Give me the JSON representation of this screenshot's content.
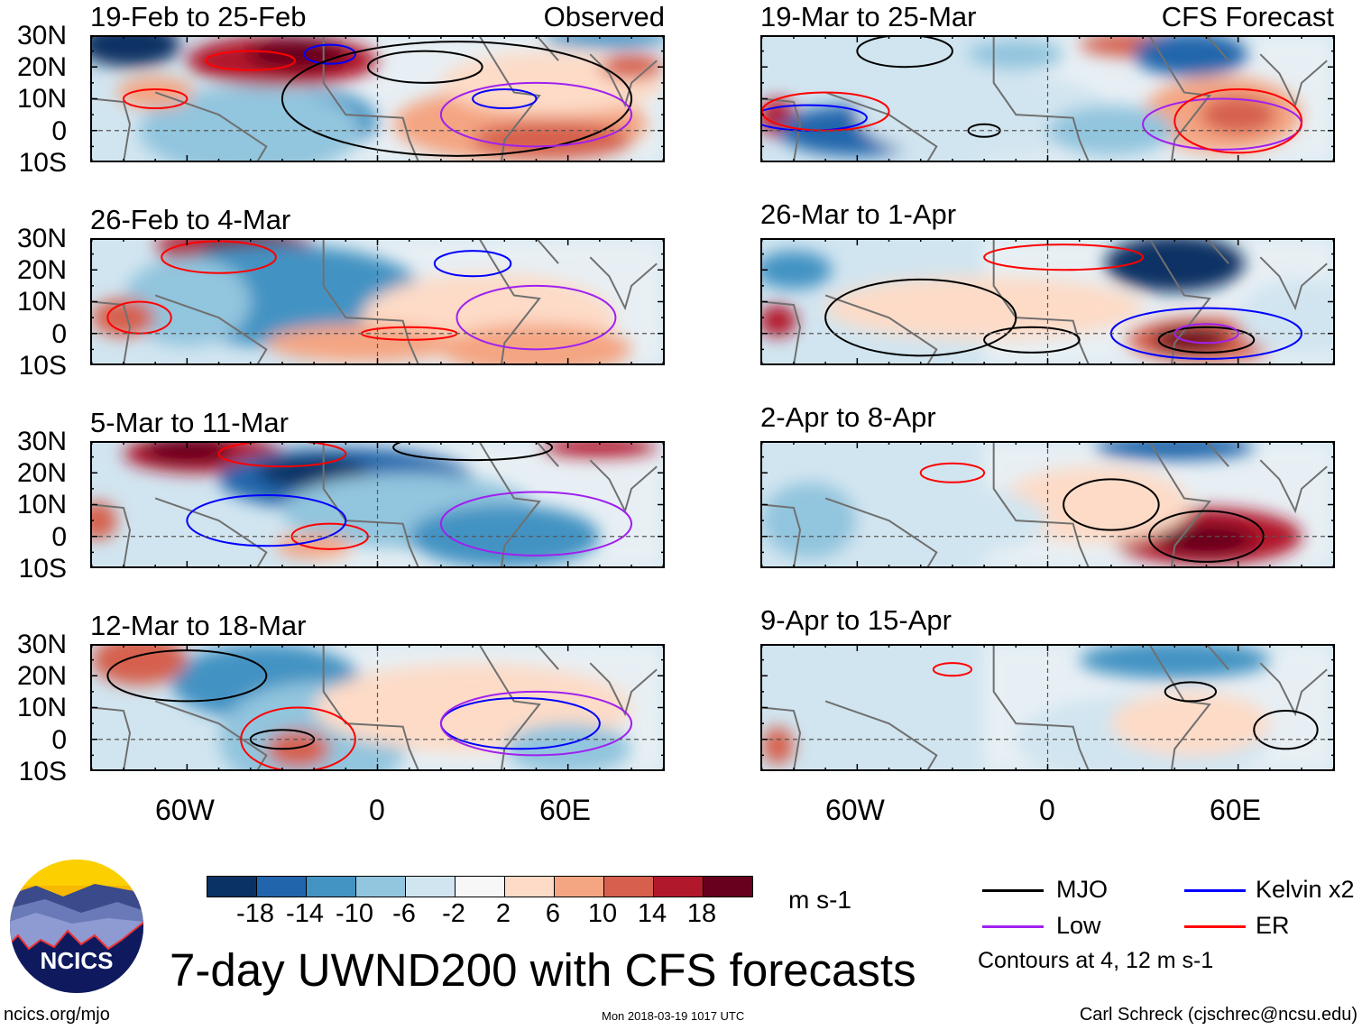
{
  "panels": {
    "observed_label": "Observed",
    "forecast_label": "CFS Forecast",
    "left": [
      {
        "title": "19-Feb to 25-Feb"
      },
      {
        "title": "26-Feb to 4-Mar"
      },
      {
        "title": "5-Mar to 11-Mar"
      },
      {
        "title": "12-Mar to 18-Mar"
      }
    ],
    "right": [
      {
        "title": "19-Mar to 25-Mar"
      },
      {
        "title": "26-Mar to 1-Apr"
      },
      {
        "title": "2-Apr to 8-Apr"
      },
      {
        "title": "9-Apr to 15-Apr"
      }
    ],
    "lat_labels": [
      "30N",
      "20N",
      "10N",
      "0",
      "10S"
    ],
    "lon_labels": [
      "60W",
      "0",
      "60E"
    ]
  },
  "colorbar": {
    "colors": [
      "#0a3263",
      "#2166ac",
      "#4393c3",
      "#92c5de",
      "#d1e5f0",
      "#f7f7f7",
      "#fddbc7",
      "#f4a582",
      "#d6604d",
      "#b2182b",
      "#67001f"
    ],
    "labels": [
      "-18",
      "-14",
      "-10",
      "-6",
      "-2",
      "2",
      "6",
      "10",
      "14",
      "18"
    ],
    "units": "m s-1"
  },
  "legend": {
    "items": [
      {
        "label": "MJO",
        "color": "#000000"
      },
      {
        "label": "Kelvin x2",
        "color": "#0000ff"
      },
      {
        "label": "Low",
        "color": "#a020f0"
      },
      {
        "label": "ER",
        "color": "#ff0000"
      }
    ],
    "contours_note": "Contours at 4, 12 m s-1"
  },
  "title": "7-day UWND200 with CFS forecasts",
  "logo_text": "NCICS",
  "footer": {
    "url": "ncics.org/mjo",
    "timestamp": "Mon 2018-03-19 1017 UTC",
    "author": "Carl Schreck (cjschrec@ncsu.edu)"
  }
}
